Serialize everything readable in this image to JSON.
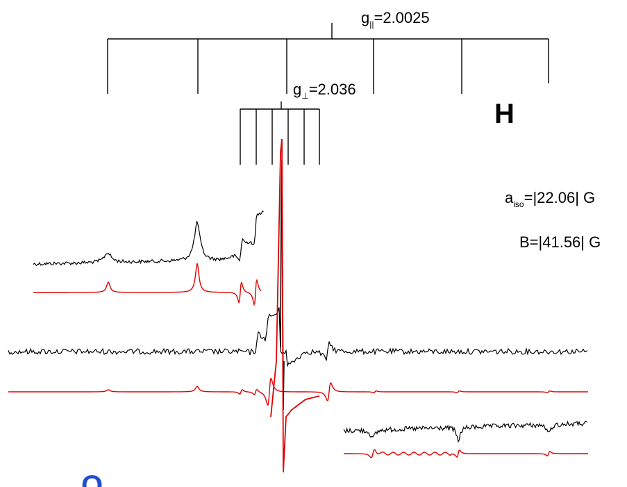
{
  "colors": {
    "experimental": "#000000",
    "simulated": "#e00000",
    "stick": "#000000",
    "letter_blue": "#1f4fd0"
  },
  "labels": {
    "g_par_base": "g",
    "g_par_sub": "||",
    "g_par_val": "=2.0025",
    "g_perp_base": "g",
    "g_perp_sub": "⊥",
    "g_perp_val": "=2.036",
    "panel_letter": "H",
    "corner_letter": "O",
    "aiso_base": "a",
    "aiso_sub": "iso",
    "aiso_val": "=|22.06| G",
    "B_text": "B=|41.56| G"
  },
  "chart_data": {
    "type": "line",
    "title": "",
    "xlabel": "",
    "ylabel": "",
    "hyperfine_stick_parallel": {
      "g": "2.0025",
      "lines": 6
    },
    "hyperfine_stick_perpendicular": {
      "g": "2.036",
      "lines": 6
    },
    "parameters": {
      "a_iso": "|22.06| G",
      "B": "|41.56| G"
    },
    "series": [
      {
        "id": "upper-experimental",
        "kind": "experimental"
      },
      {
        "id": "upper-simulated",
        "kind": "simulated"
      },
      {
        "id": "middle-experimental",
        "kind": "experimental"
      },
      {
        "id": "middle-simulated",
        "kind": "simulated"
      },
      {
        "id": "lower-experimental",
        "kind": "experimental"
      },
      {
        "id": "lower-simulated",
        "kind": "simulated"
      }
    ]
  }
}
